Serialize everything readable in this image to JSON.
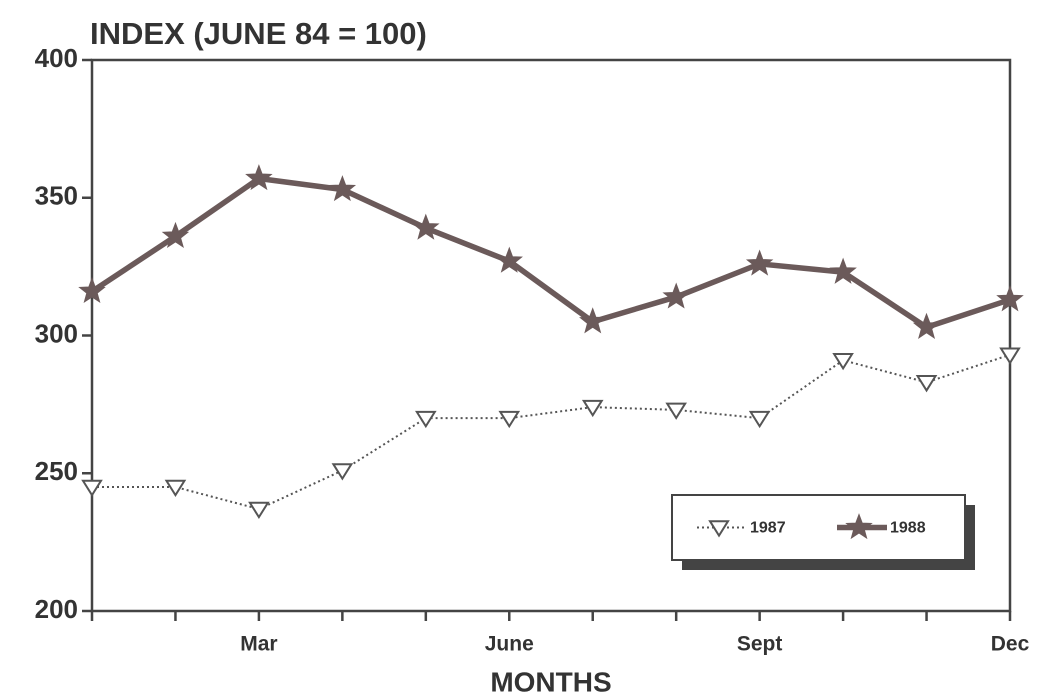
{
  "chart_data": {
    "type": "line",
    "title": "INDEX (JUNE 84 = 100)",
    "x_label": "MONTHS",
    "categories": [
      null,
      null,
      "Mar",
      null,
      null,
      "June",
      null,
      null,
      "Sept",
      null,
      null,
      "Dec"
    ],
    "series": [
      {
        "name": "1987",
        "color": "#555555",
        "linestyle": "dotted",
        "marker": "triangle-down",
        "values": [
          245,
          245,
          237,
          251,
          270,
          270,
          274,
          273,
          270,
          291,
          283,
          293
        ]
      },
      {
        "name": "1988",
        "color": "#6b5a5a",
        "linestyle": "solid",
        "marker": "star",
        "values": [
          316,
          336,
          357,
          353,
          339,
          327,
          305,
          314,
          326,
          323,
          303,
          313
        ]
      }
    ],
    "ylim": [
      200,
      400
    ],
    "yticks": [
      200,
      250,
      300,
      350,
      400
    ],
    "grid": false,
    "legend": "lower right"
  }
}
